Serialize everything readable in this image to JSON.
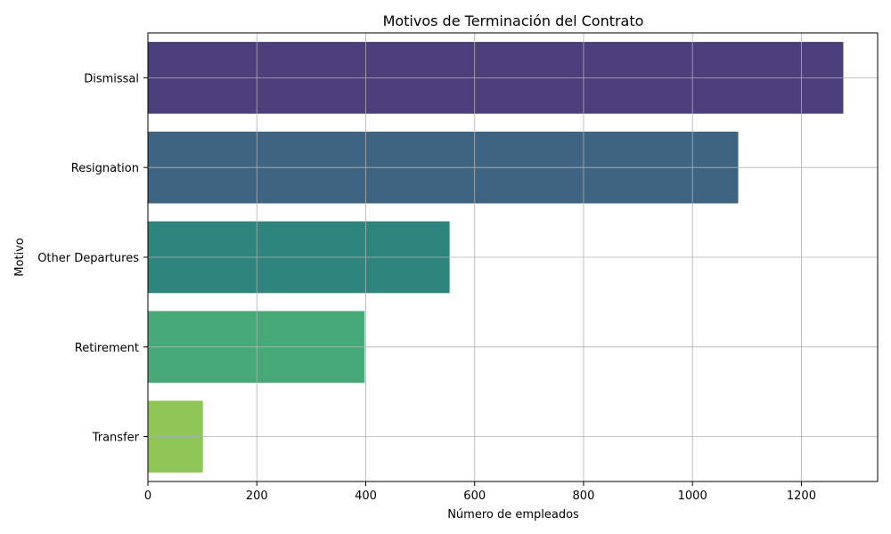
{
  "chart_data": {
    "type": "bar",
    "orientation": "horizontal",
    "title": "Motivos de Terminación del Contrato",
    "xlabel": "Número de empleados",
    "ylabel": "Motivo",
    "categories": [
      "Dismissal",
      "Resignation",
      "Other Departures",
      "Retirement",
      "Transfer"
    ],
    "values": [
      1277,
      1084,
      554,
      398,
      101
    ],
    "colors": [
      "#4b407c",
      "#3e6482",
      "#2d857e",
      "#47a978",
      "#8fc656"
    ],
    "xlim": [
      0,
      1340
    ],
    "xticks": [
      0,
      200,
      400,
      600,
      800,
      1000,
      1200
    ],
    "grid": true
  }
}
